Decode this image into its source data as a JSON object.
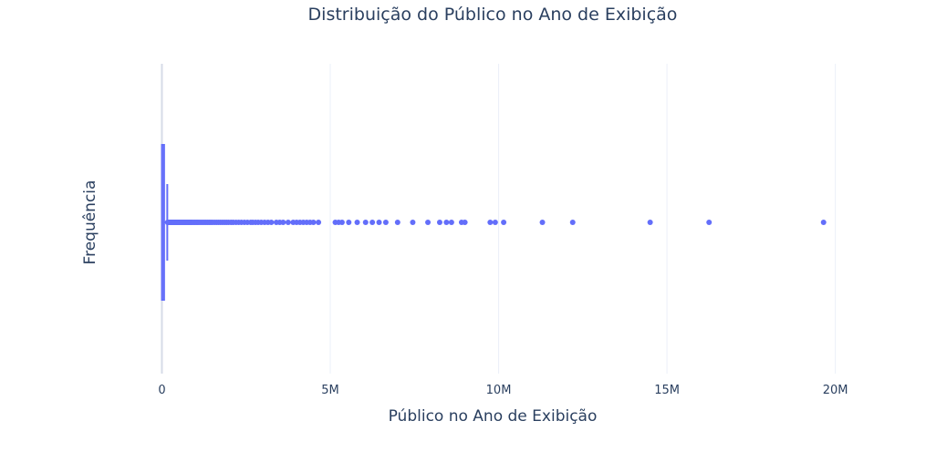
{
  "chart_data": {
    "type": "box",
    "orientation": "horizontal",
    "title": "Distribuição do Público no Ano de Exibição",
    "xlabel": "Público no Ano de Exibição",
    "ylabel": "Frequência",
    "xlim": [
      -500000,
      21500000
    ],
    "xticks": [
      {
        "value": 0,
        "label": "0"
      },
      {
        "value": 5000000,
        "label": "5M"
      },
      {
        "value": 10000000,
        "label": "10M"
      },
      {
        "value": 15000000,
        "label": "15M"
      },
      {
        "value": 20000000,
        "label": "20M"
      }
    ],
    "box": {
      "min": 0,
      "q1": 2000,
      "median": 10000,
      "q3": 65000,
      "upper_fence": 160000
    },
    "outliers": [
      170000,
      190000,
      210000,
      230000,
      250000,
      270000,
      290000,
      310000,
      330000,
      350000,
      370000,
      390000,
      410000,
      430000,
      450000,
      470000,
      490000,
      510000,
      540000,
      570000,
      600000,
      630000,
      660000,
      690000,
      720000,
      750000,
      780000,
      810000,
      840000,
      870000,
      900000,
      940000,
      980000,
      1020000,
      1060000,
      1100000,
      1150000,
      1200000,
      1250000,
      1300000,
      1350000,
      1400000,
      1450000,
      1500000,
      1560000,
      1620000,
      1680000,
      1740000,
      1800000,
      1860000,
      1920000,
      1980000,
      2050000,
      2120000,
      2200000,
      2280000,
      2360000,
      2450000,
      2540000,
      2640000,
      2700000,
      2780000,
      2860000,
      2950000,
      3050000,
      3150000,
      3250000,
      3400000,
      3500000,
      3600000,
      3750000,
      3900000,
      4000000,
      4100000,
      4200000,
      4300000,
      4400000,
      4500000,
      4650000,
      5150000,
      5250000,
      5350000,
      5550000,
      5800000,
      6050000,
      6250000,
      6450000,
      6650000,
      7000000,
      7450000,
      7900000,
      8250000,
      8450000,
      8600000,
      8900000,
      9000000,
      9750000,
      9900000,
      10150000,
      11300000,
      12200000,
      14500000,
      16250000,
      19650000
    ],
    "color": "#636efa",
    "grid": true,
    "legend": "none"
  }
}
